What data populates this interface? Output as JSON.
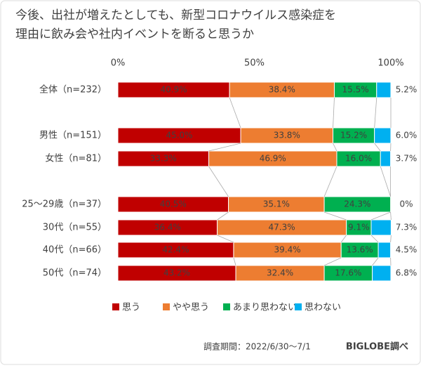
{
  "chart_data": {
    "type": "stacked-bar-100",
    "title": [
      "今後、出社が増えたとしても、新型コロナウイルス感染症を",
      "理由に飲み会や社内イベントを断ると思うか"
    ],
    "categories": [
      "全体（n=232）",
      "男性（n=151）",
      "女性（n=81）",
      "25〜29歳（n=37）",
      "30代（n=55）",
      "40代（n=66）",
      "50代（n=74）"
    ],
    "series": [
      {
        "name": "思う",
        "color": "#c00000",
        "values": [
          40.9,
          45.0,
          33.3,
          40.5,
          36.4,
          42.4,
          43.2
        ],
        "value_labels": [
          "40.9%",
          "45.0%",
          "33.3%",
          "40.5%",
          "36.4%",
          "42.4%",
          "43.2%"
        ]
      },
      {
        "name": "やや思う",
        "color": "#ed7d31",
        "values": [
          38.4,
          33.8,
          46.9,
          35.1,
          47.3,
          39.4,
          32.4
        ],
        "value_labels": [
          "38.4%",
          "33.8%",
          "46.9%",
          "35.1%",
          "47.3%",
          "39.4%",
          "32.4%"
        ]
      },
      {
        "name": "あまり思わない",
        "color": "#00b050",
        "values": [
          15.5,
          15.2,
          16.0,
          24.3,
          9.1,
          13.6,
          17.6
        ],
        "value_labels": [
          "15.5%",
          "15.2%",
          "16.0%",
          "24.3%",
          "9.1%",
          "13.6%",
          "17.6%"
        ]
      },
      {
        "name": "思わない",
        "color": "#00b0f0",
        "values": [
          5.2,
          6.0,
          3.7,
          0,
          7.3,
          4.5,
          6.8
        ],
        "value_labels": [
          "5.2%",
          "6.0%",
          "3.7%",
          "0%",
          "7.3%",
          "4.5%",
          "6.8%"
        ]
      }
    ],
    "xlim": [
      0,
      100
    ],
    "xticks": [
      {
        "value": 0,
        "label": "0%"
      },
      {
        "value": 50,
        "label": "50%"
      },
      {
        "value": 100,
        "label": "100%"
      }
    ],
    "legend": "bottom",
    "note": "調査期間：2022/6/30〜7/1",
    "source": "BIGLOBE調べ"
  }
}
